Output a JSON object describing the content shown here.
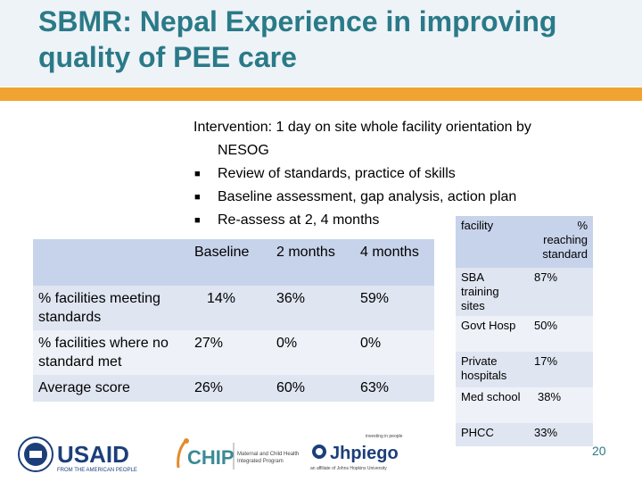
{
  "title": "SBMR: Nepal Experience in improving quality of PEE care",
  "intervention": {
    "lead_line1": "Intervention:  1 day on site whole facility orientation by",
    "lead_line2": "NESOG",
    "bullets": [
      "Review of standards, practice of skills",
      "Baseline assessment, gap analysis, action plan",
      "Re-assess at 2, 4 months"
    ]
  },
  "results_table": {
    "headers": [
      "",
      "Baseline",
      "2 months",
      "4 months"
    ],
    "rows": [
      {
        "label": "% facilities meeting standards",
        "baseline": "14%",
        "m2": "36%",
        "m4": "59%"
      },
      {
        "label": "% facilities where no standard met",
        "baseline": "27%",
        "m2": "0%",
        "m4": "0%"
      },
      {
        "label": "Average score",
        "baseline": "26%",
        "m2": "60%",
        "m4": "63%"
      }
    ]
  },
  "facility_table": {
    "headers": [
      "facility",
      "% reaching standard"
    ],
    "rows": [
      {
        "facility": "SBA training sites",
        "pct": "87%"
      },
      {
        "facility": "Govt Hosp",
        "pct": "50%"
      },
      {
        "facility": "Private hospitals",
        "pct": "17%"
      },
      {
        "facility": "Med school",
        "pct": "38%"
      },
      {
        "facility": "PHCC",
        "pct": "33%"
      }
    ]
  },
  "page_number": "20",
  "logos": {
    "usaid_text": "USAID",
    "usaid_sub": "FROM THE AMERICAN PEOPLE",
    "chip_text": "CHIP",
    "chip_sub1": "Maternal and Child Health",
    "chip_sub2": "Integrated Program",
    "jhpiego_text": "Jhpiego",
    "jhpiego_tag": "investing in people",
    "jhpiego_sub": "an affiliate of Johns Hopkins University"
  },
  "colors": {
    "title": "#2a7a88",
    "accent_bar": "#f0a330",
    "table_header": "#c7d3ea",
    "table_row_dark": "#dfe5f1",
    "table_row_light": "#eef1f8"
  }
}
